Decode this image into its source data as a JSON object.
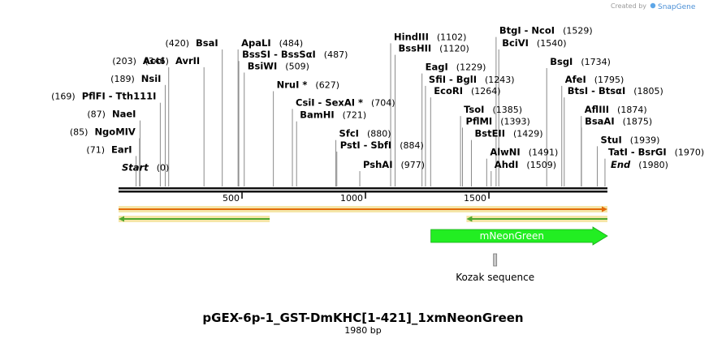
{
  "credit": {
    "text": "Created by",
    "brand": "SnapGene"
  },
  "sequence": {
    "name": "pGEX-6p-1_GST-DmKHC[1-421]_1xmNeonGreen",
    "length_label": "1980 bp",
    "length": 1980
  },
  "ruler": {
    "ticks": [
      {
        "pos": 500,
        "label": "500"
      },
      {
        "pos": 1000,
        "label": "1000"
      },
      {
        "pos": 1500,
        "label": "1500"
      }
    ]
  },
  "sites": [
    {
      "name": "Start",
      "position": 0,
      "pos_label": "(0)",
      "side": "right",
      "italic": true
    },
    {
      "name": "EarI",
      "position": 71,
      "pos_label": "(71)",
      "side": "left"
    },
    {
      "name": "NgoMIV",
      "position": 85,
      "pos_label": "(85)",
      "side": "left"
    },
    {
      "name": "NaeI",
      "position": 87,
      "pos_label": "(87)",
      "side": "left"
    },
    {
      "name": "PflFI - Tth111I",
      "position": 169,
      "pos_label": "(169)",
      "side": "left"
    },
    {
      "name": "NsiI",
      "position": 189,
      "pos_label": "(189)",
      "side": "left"
    },
    {
      "name": "AccI",
      "position": 203,
      "pos_label": "(203)",
      "side": "left"
    },
    {
      "name": "AvrII",
      "position": 346,
      "pos_label": "(346)",
      "side": "left"
    },
    {
      "name": "BsaI",
      "position": 420,
      "pos_label": "(420)",
      "side": "left"
    },
    {
      "name": "ApaLI",
      "position": 484,
      "pos_label": "(484)",
      "side": "right"
    },
    {
      "name": "BssSI - BssSαI",
      "position": 487,
      "pos_label": "(487)",
      "side": "right"
    },
    {
      "name": "BsiWI",
      "position": 509,
      "pos_label": "(509)",
      "side": "right"
    },
    {
      "name": "NruI *",
      "position": 627,
      "pos_label": "(627)",
      "side": "right"
    },
    {
      "name": "CsiI - SexAI *",
      "position": 704,
      "pos_label": "(704)",
      "side": "right"
    },
    {
      "name": "BamHI",
      "position": 721,
      "pos_label": "(721)",
      "side": "right"
    },
    {
      "name": "SfcI",
      "position": 880,
      "pos_label": "(880)",
      "side": "right"
    },
    {
      "name": "PstI - SbfI",
      "position": 884,
      "pos_label": "(884)",
      "side": "right"
    },
    {
      "name": "PshAI",
      "position": 977,
      "pos_label": "(977)",
      "side": "right"
    },
    {
      "name": "HindIII",
      "position": 1102,
      "pos_label": "(1102)",
      "side": "right"
    },
    {
      "name": "BssHII",
      "position": 1120,
      "pos_label": "(1120)",
      "side": "right"
    },
    {
      "name": "EagI",
      "position": 1229,
      "pos_label": "(1229)",
      "side": "right"
    },
    {
      "name": "SfiI - BglI",
      "position": 1243,
      "pos_label": "(1243)",
      "side": "right"
    },
    {
      "name": "EcoRI",
      "position": 1264,
      "pos_label": "(1264)",
      "side": "right"
    },
    {
      "name": "TsoI",
      "position": 1385,
      "pos_label": "(1385)",
      "side": "right"
    },
    {
      "name": "PflMI",
      "position": 1393,
      "pos_label": "(1393)",
      "side": "right"
    },
    {
      "name": "BstEII",
      "position": 1429,
      "pos_label": "(1429)",
      "side": "right"
    },
    {
      "name": "AlwNI",
      "position": 1491,
      "pos_label": "(1491)",
      "side": "right"
    },
    {
      "name": "AhdI",
      "position": 1509,
      "pos_label": "(1509)",
      "side": "right"
    },
    {
      "name": "BtgI - NcoI",
      "position": 1529,
      "pos_label": "(1529)",
      "side": "right"
    },
    {
      "name": "BciVI",
      "position": 1540,
      "pos_label": "(1540)",
      "side": "right"
    },
    {
      "name": "BsgI",
      "position": 1734,
      "pos_label": "(1734)",
      "side": "right"
    },
    {
      "name": "AfeI",
      "position": 1795,
      "pos_label": "(1795)",
      "side": "right"
    },
    {
      "name": "BtsI - BtsαI",
      "position": 1805,
      "pos_label": "(1805)",
      "side": "right"
    },
    {
      "name": "AflIII",
      "position": 1874,
      "pos_label": "(1874)",
      "side": "right"
    },
    {
      "name": "BsaAI",
      "position": 1875,
      "pos_label": "(1875)",
      "side": "right"
    },
    {
      "name": "StuI",
      "position": 1939,
      "pos_label": "(1939)",
      "side": "right"
    },
    {
      "name": "TatI - BsrGI",
      "position": 1970,
      "pos_label": "(1970)",
      "side": "right"
    },
    {
      "name": "End",
      "position": 1980,
      "pos_label": "(1980)",
      "side": "right",
      "italic": true
    }
  ],
  "features": [
    {
      "type": "orf",
      "start": 1,
      "end": 1980,
      "strand": "+",
      "color": "#e36c09",
      "highlight": "#f5e6a8"
    },
    {
      "type": "orf",
      "start": 1,
      "end": 612,
      "strand": "-",
      "color": "#4ea72e",
      "highlight": "#f5e6a8"
    },
    {
      "type": "orf",
      "start": 1410,
      "end": 1980,
      "strand": "-",
      "color": "#4ea72e",
      "highlight": "#f5e6a8"
    },
    {
      "type": "gene",
      "name": "mNeonGreen",
      "start": 1266,
      "end": 1980,
      "strand": "+",
      "color": "#22ee22"
    },
    {
      "type": "misc",
      "name": "Kozak sequence",
      "start": 1521,
      "end": 1530,
      "color": "#c8c8c8"
    }
  ]
}
